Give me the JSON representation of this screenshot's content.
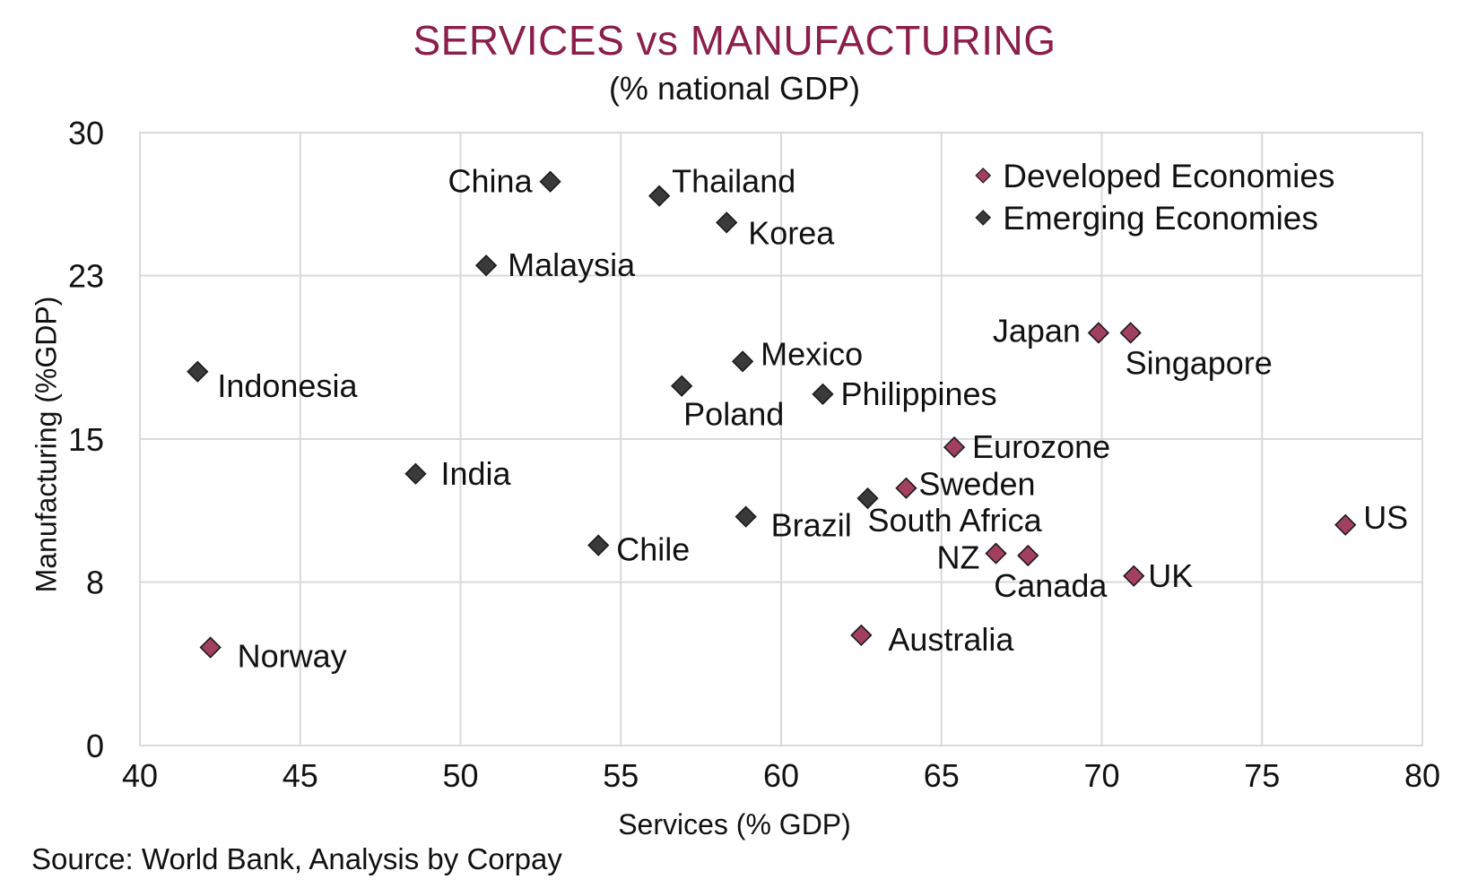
{
  "chart_data": {
    "type": "scatter",
    "title": "SERVICES vs MANUFACTURING",
    "subtitle": "(% national GDP)",
    "xlabel": "Services (% GDP)",
    "ylabel": "Manufacturing (%GDP)",
    "xlim": [
      40,
      80
    ],
    "ylim": [
      0,
      30
    ],
    "xticks": [
      40,
      45,
      50,
      55,
      60,
      65,
      70,
      75,
      80
    ],
    "yticks": [
      0,
      8,
      15,
      23,
      30
    ],
    "grid": true,
    "legend_position": "top-right",
    "series": [
      {
        "name": "Developed Economies",
        "color": "#a3405f",
        "points": [
          {
            "label": "Norway",
            "x": 42.2,
            "y": 4.8
          },
          {
            "label": "Australia",
            "x": 62.5,
            "y": 5.4
          },
          {
            "label": "Sweden",
            "x": 63.9,
            "y": 12.6
          },
          {
            "label": "Eurozone",
            "x": 65.4,
            "y": 14.6
          },
          {
            "label": "NZ",
            "x": 66.7,
            "y": 9.4
          },
          {
            "label": "Canada",
            "x": 67.7,
            "y": 9.3
          },
          {
            "label": "Japan",
            "x": 69.9,
            "y": 20.2
          },
          {
            "label": "Singapore",
            "x": 70.9,
            "y": 20.2
          },
          {
            "label": "UK",
            "x": 71.0,
            "y": 8.3
          },
          {
            "label": "US",
            "x": 77.6,
            "y": 10.8
          }
        ]
      },
      {
        "name": "Emerging Economies",
        "color": "#3a3a3a",
        "points": [
          {
            "label": "Indonesia",
            "x": 41.8,
            "y": 18.3
          },
          {
            "label": "India",
            "x": 48.6,
            "y": 13.3
          },
          {
            "label": "Malaysia",
            "x": 50.8,
            "y": 23.5
          },
          {
            "label": "China",
            "x": 52.8,
            "y": 27.6
          },
          {
            "label": "Chile",
            "x": 54.3,
            "y": 9.8
          },
          {
            "label": "Thailand",
            "x": 56.2,
            "y": 26.9
          },
          {
            "label": "Poland",
            "x": 56.9,
            "y": 17.6
          },
          {
            "label": "Korea",
            "x": 58.3,
            "y": 25.6
          },
          {
            "label": "Mexico",
            "x": 58.8,
            "y": 18.8
          },
          {
            "label": "Brazil",
            "x": 58.9,
            "y": 11.2
          },
          {
            "label": "Philippines",
            "x": 61.3,
            "y": 17.2
          },
          {
            "label": "South Africa",
            "x": 62.7,
            "y": 12.1
          }
        ]
      }
    ]
  },
  "source": "Source: World Bank, Analysis by Corpay"
}
